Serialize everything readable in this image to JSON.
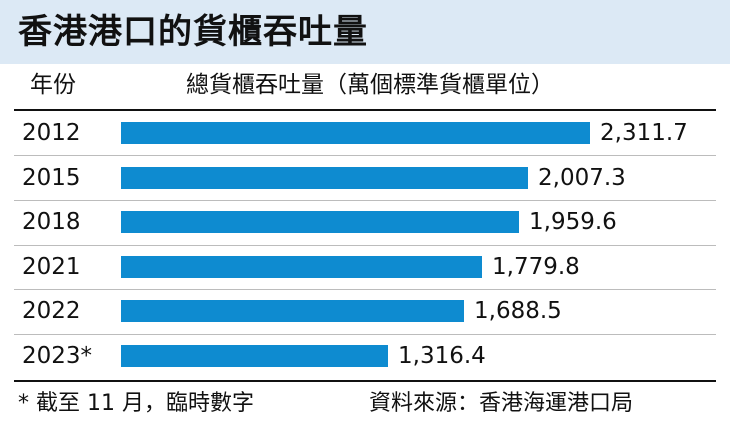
{
  "title": "香港港口的貨櫃吞吐量",
  "header": {
    "year_label": "年份",
    "metric_label": "總貨櫃吞吐量（萬個標準貨櫃單位）"
  },
  "chart_data": {
    "type": "bar",
    "orientation": "horizontal",
    "categories": [
      "2012",
      "2015",
      "2018",
      "2021",
      "2022",
      "2023*"
    ],
    "values": [
      2311.7,
      2007.3,
      1959.6,
      1779.8,
      1688.5,
      1316.4
    ],
    "value_labels": [
      "2,311.7",
      "2,007.3",
      "1,959.6",
      "1,779.8",
      "1,688.5",
      "1,316.4"
    ],
    "xlim": [
      0,
      2311.7
    ],
    "bar_color": "#0e8bd0",
    "grid": false
  },
  "footnote": "* 截至 11 月，臨時數字",
  "source": "資料來源：香港海運港口局"
}
